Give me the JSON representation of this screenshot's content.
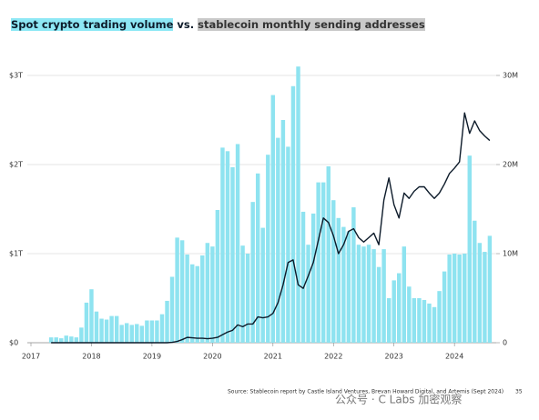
{
  "chart_data": {
    "type": "bar",
    "title": [
      "Spot crypto trading volume",
      "vs.",
      "stablecoin monthly sending addresses"
    ],
    "source": "Source: Stablecoin report by Castle Island Ventures, Brevan Howard Digital, and Artemis (Sept 2024)",
    "page_number": "35",
    "watermark": "公众号 · C Labs 加密观察",
    "x": [
      2017.333,
      2017.417,
      2017.5,
      2017.583,
      2017.667,
      2017.75,
      2017.833,
      2017.917,
      2018,
      2018.083,
      2018.167,
      2018.25,
      2018.333,
      2018.417,
      2018.5,
      2018.583,
      2018.667,
      2018.75,
      2018.833,
      2018.917,
      2019,
      2019.083,
      2019.167,
      2019.25,
      2019.333,
      2019.417,
      2019.5,
      2019.583,
      2019.667,
      2019.75,
      2019.833,
      2019.917,
      2020,
      2020.083,
      2020.167,
      2020.25,
      2020.333,
      2020.417,
      2020.5,
      2020.583,
      2020.667,
      2020.75,
      2020.833,
      2020.917,
      2021,
      2021.083,
      2021.167,
      2021.25,
      2021.333,
      2021.417,
      2021.5,
      2021.583,
      2021.667,
      2021.75,
      2021.833,
      2021.917,
      2022,
      2022.083,
      2022.167,
      2022.25,
      2022.333,
      2022.417,
      2022.5,
      2022.583,
      2022.667,
      2022.75,
      2022.833,
      2022.917,
      2023,
      2023.083,
      2023.167,
      2023.25,
      2023.333,
      2023.417,
      2023.5,
      2023.583,
      2023.667,
      2023.75,
      2023.833,
      2023.917,
      2024,
      2024.083,
      2024.167,
      2024.25,
      2024.333,
      2024.417,
      2024.5,
      2024.583
    ],
    "series": [
      {
        "color": "#8ee3f0",
        "values": [
          0.06,
          0.06,
          0.05,
          0.08,
          0.07,
          0.06,
          0.17,
          0.45,
          0.6,
          0.35,
          0.27,
          0.26,
          0.3,
          0.3,
          0.2,
          0.22,
          0.2,
          0.21,
          0.19,
          0.25,
          0.25,
          0.25,
          0.32,
          0.47,
          0.74,
          1.18,
          1.15,
          0.99,
          0.88,
          0.86,
          0.98,
          1.12,
          1.08,
          1.49,
          2.19,
          2.15,
          1.97,
          2.23,
          1.09,
          1.0,
          1.58,
          1.9,
          1.29,
          2.11,
          2.78,
          2.3,
          2.5,
          2.2,
          2.88,
          3.1,
          1.47,
          1.1,
          1.45,
          1.8,
          1.8,
          1.98,
          1.6,
          1.4,
          1.3,
          1.25,
          1.52,
          1.1,
          1.08,
          1.1,
          1.05,
          0.85,
          1.05,
          0.5,
          0.7,
          0.78,
          1.08,
          0.63,
          0.5,
          0.5,
          0.48,
          0.44,
          0.4,
          0.58,
          0.8,
          0.99,
          1.0,
          0.99,
          1.0,
          2.1,
          1.37,
          1.12,
          1.02,
          1.2
        ]
      },
      {
        "type": "line",
        "axis": "y2",
        "color": "#0d1b2a",
        "values": [
          0,
          0,
          0,
          0,
          0,
          0,
          0,
          0,
          0,
          0,
          0,
          0,
          0,
          0,
          0,
          0,
          0,
          0,
          0,
          0,
          0,
          0,
          0,
          0,
          0.05,
          0.15,
          0.35,
          0.6,
          0.55,
          0.5,
          0.5,
          0.45,
          0.5,
          0.6,
          0.9,
          1.2,
          1.4,
          2.0,
          1.8,
          2.1,
          2.1,
          2.9,
          2.8,
          2.9,
          3.3,
          4.5,
          6.5,
          9,
          9.3,
          6.5,
          6.1,
          7.5,
          9,
          11.5,
          14,
          13.5,
          12,
          10,
          11,
          12.5,
          12.8,
          11.8,
          11.3,
          11.8,
          12.3,
          11,
          16,
          18.5,
          15.5,
          14,
          16.8,
          16.2,
          17,
          17.5,
          17.5,
          16.8,
          16.2,
          16.8,
          17.8,
          19,
          19.6,
          20.3,
          25.8,
          23.5,
          24.9,
          23.8,
          23.2,
          22.7
        ]
      }
    ],
    "xlim": [
      2017,
      2024.75
    ],
    "xticks": [
      2017,
      2018,
      2019,
      2020,
      2021,
      2022,
      2023,
      2024
    ],
    "ylim": [
      0,
      3
    ],
    "yticks": [
      {
        "value": 0,
        "label": "$0"
      },
      {
        "value": 1,
        "label": "$1T"
      },
      {
        "value": 2,
        "label": "$2T"
      },
      {
        "value": 3,
        "label": "$3T"
      }
    ],
    "y2lim": [
      0,
      30
    ],
    "y2ticks": [
      0,
      {
        "value": 10,
        "label": "10M"
      },
      {
        "value": 20,
        "label": "20M"
      },
      {
        "value": 30,
        "label": "30M"
      }
    ],
    "grid": true
  }
}
